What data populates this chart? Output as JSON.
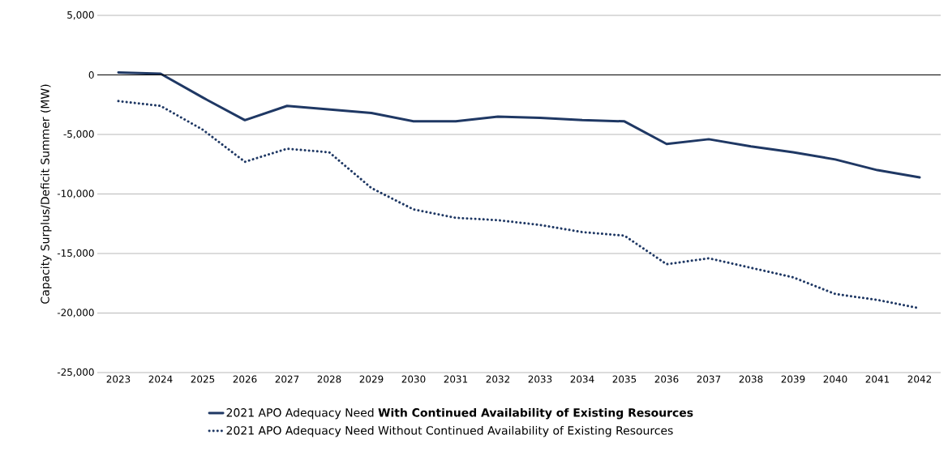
{
  "chart_data": {
    "type": "line",
    "ylabel": "Capacity Surplus/Deficit Summer (MW)",
    "categories": [
      "2023",
      "2024",
      "2025",
      "2026",
      "2027",
      "2028",
      "2029",
      "2030",
      "2031",
      "2032",
      "2033",
      "2034",
      "2035",
      "2036",
      "2037",
      "2038",
      "2039",
      "2040",
      "2041",
      "2042"
    ],
    "series": [
      {
        "name": "2021 APO Adequacy Need **With Continued Availability of Existing Resources**",
        "color": "#1f3864",
        "line_style": "solid",
        "values": [
          200,
          100,
          -1900,
          -3800,
          -2600,
          -2900,
          -3200,
          -3900,
          -3900,
          -3500,
          -3600,
          -3800,
          -3900,
          -5800,
          -5400,
          -6000,
          -6500,
          -7100,
          -8000,
          -8600
        ]
      },
      {
        "name": "2021 APO Adequacy Need Without Continued Availability of Existing Resources",
        "color": "#1f3864",
        "line_style": "dotted",
        "values": [
          -2200,
          -2600,
          -4600,
          -7300,
          -6200,
          -6500,
          -9500,
          -11300,
          -12000,
          -12200,
          -12600,
          -13200,
          -13500,
          -15900,
          -15400,
          -16200,
          -17000,
          -18400,
          -18900,
          -19600
        ]
      }
    ],
    "ylim": [
      -25000,
      5000
    ],
    "yticks": [
      {
        "value": 5000,
        "label": "5,000"
      },
      0,
      {
        "value": -5000,
        "label": "-5,000"
      },
      {
        "value": -10000,
        "label": "-10,000"
      },
      {
        "value": -15000,
        "label": "-15,000"
      },
      {
        "value": -20000,
        "label": "-20,000"
      },
      {
        "value": -25000,
        "label": "-25,000"
      }
    ],
    "ref_lines": [
      {
        "axis": "y",
        "value": 0,
        "color": "#000000"
      }
    ],
    "grid": "y",
    "legend": "bottom"
  }
}
